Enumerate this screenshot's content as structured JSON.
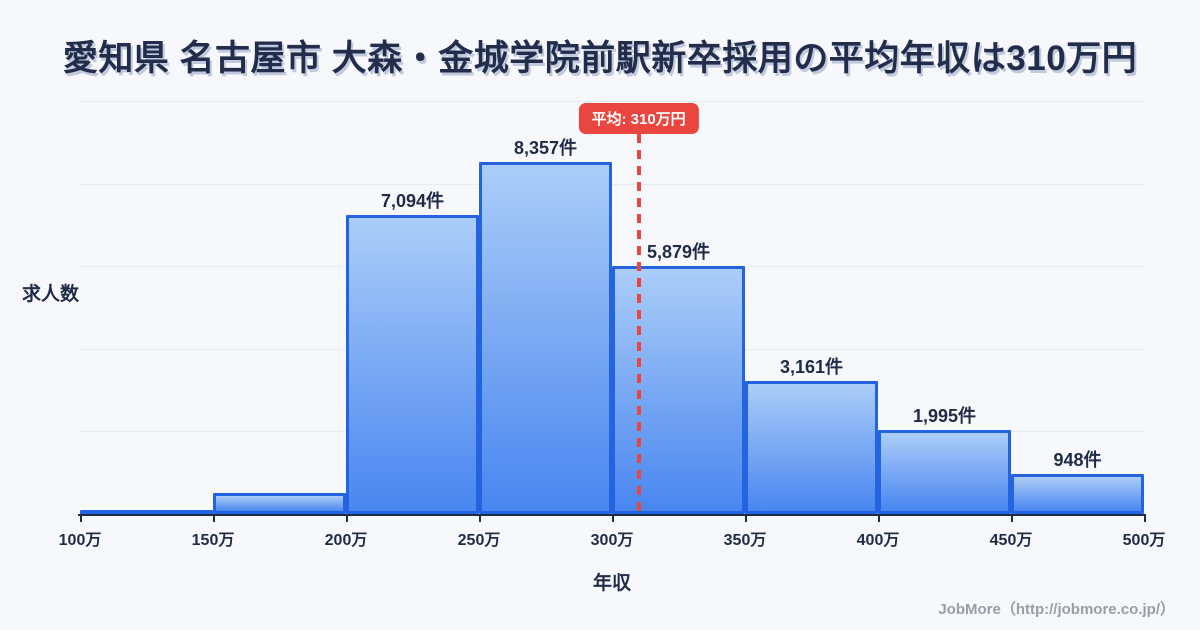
{
  "title": "愛知県 名古屋市 大森・金城学院前駅新卒採用の平均年収は310万円",
  "footer": {
    "credit": "JobMore（http://jobmore.co.jp/）"
  },
  "colors": {
    "background": "#f7f8fb",
    "ink_navy": "#1f2b47",
    "bar_border": "#2564e0",
    "bar_gradient_top": "#abcdf8",
    "bar_gradient_bottom": "#4886f0",
    "gridline": "#e7ebf2",
    "average_red": "#e8463f",
    "footer_gray": "#9a9ca6"
  },
  "chart_data": {
    "type": "bar",
    "title": "愛知県 名古屋市 大森・金城学院前駅新卒採用の平均年収は310万円",
    "xlabel": "年収",
    "ylabel": "求人数",
    "x_tick_labels": [
      "100万",
      "150万",
      "200万",
      "250万",
      "300万",
      "350万",
      "400万",
      "450万",
      "500万"
    ],
    "bins": [
      {
        "range": "100万-150万",
        "value": 100,
        "label": ""
      },
      {
        "range": "150万-200万",
        "value": 500,
        "label": ""
      },
      {
        "range": "200万-250万",
        "value": 7094,
        "label": "7,094件"
      },
      {
        "range": "250万-300万",
        "value": 8357,
        "label": "8,357件"
      },
      {
        "range": "300万-350万",
        "value": 5879,
        "label": "5,879件"
      },
      {
        "range": "350万-400万",
        "value": 3161,
        "label": "3,161件"
      },
      {
        "range": "400万-450万",
        "value": 1995,
        "label": "1,995件"
      },
      {
        "range": "450万-500万",
        "value": 948,
        "label": "948件"
      }
    ],
    "average": {
      "value_man_yen": 310,
      "badge_label": "平均: 310万円",
      "x_axis_min_man_yen": 100,
      "x_axis_max_man_yen": 500
    },
    "ylim": [
      0,
      9800
    ],
    "grid": true,
    "gridline_count": 5,
    "legend": "none"
  }
}
